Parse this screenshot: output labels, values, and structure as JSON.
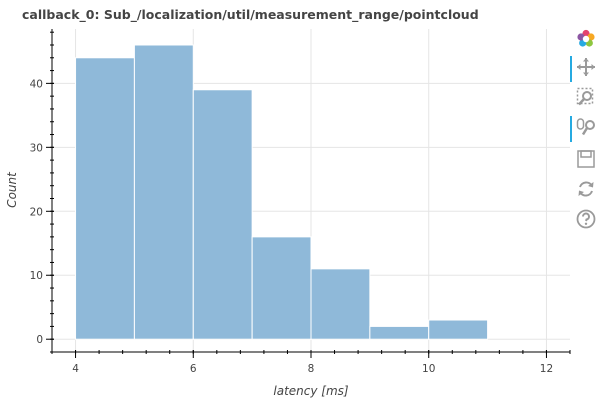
{
  "chart_data": {
    "type": "bar",
    "title": "callback_0: Sub_/localization/util/measurement_range/pointcloud",
    "xlabel": "latency [ms]",
    "ylabel": "Count",
    "bins": [
      {
        "start": 4,
        "end": 5,
        "count": 44
      },
      {
        "start": 5,
        "end": 6,
        "count": 46
      },
      {
        "start": 6,
        "end": 7,
        "count": 39
      },
      {
        "start": 7,
        "end": 8,
        "count": 16
      },
      {
        "start": 8,
        "end": 9,
        "count": 11
      },
      {
        "start": 9,
        "end": 10,
        "count": 2
      },
      {
        "start": 10,
        "end": 11,
        "count": 3
      }
    ],
    "xlim": [
      3.6,
      12.4
    ],
    "ylim": [
      -2,
      48.5
    ],
    "xticks": [
      "4",
      "6",
      "8",
      "10",
      "12"
    ],
    "yticks": [
      "0",
      "10",
      "20",
      "30",
      "40"
    ],
    "grid": true,
    "bar_color": "#8fb9d9"
  },
  "toolbar": {
    "tools": [
      "bokeh-logo-icon",
      "pan-icon",
      "box-zoom-icon",
      "wheel-zoom-icon",
      "save-icon",
      "reset-icon",
      "help-icon"
    ]
  }
}
